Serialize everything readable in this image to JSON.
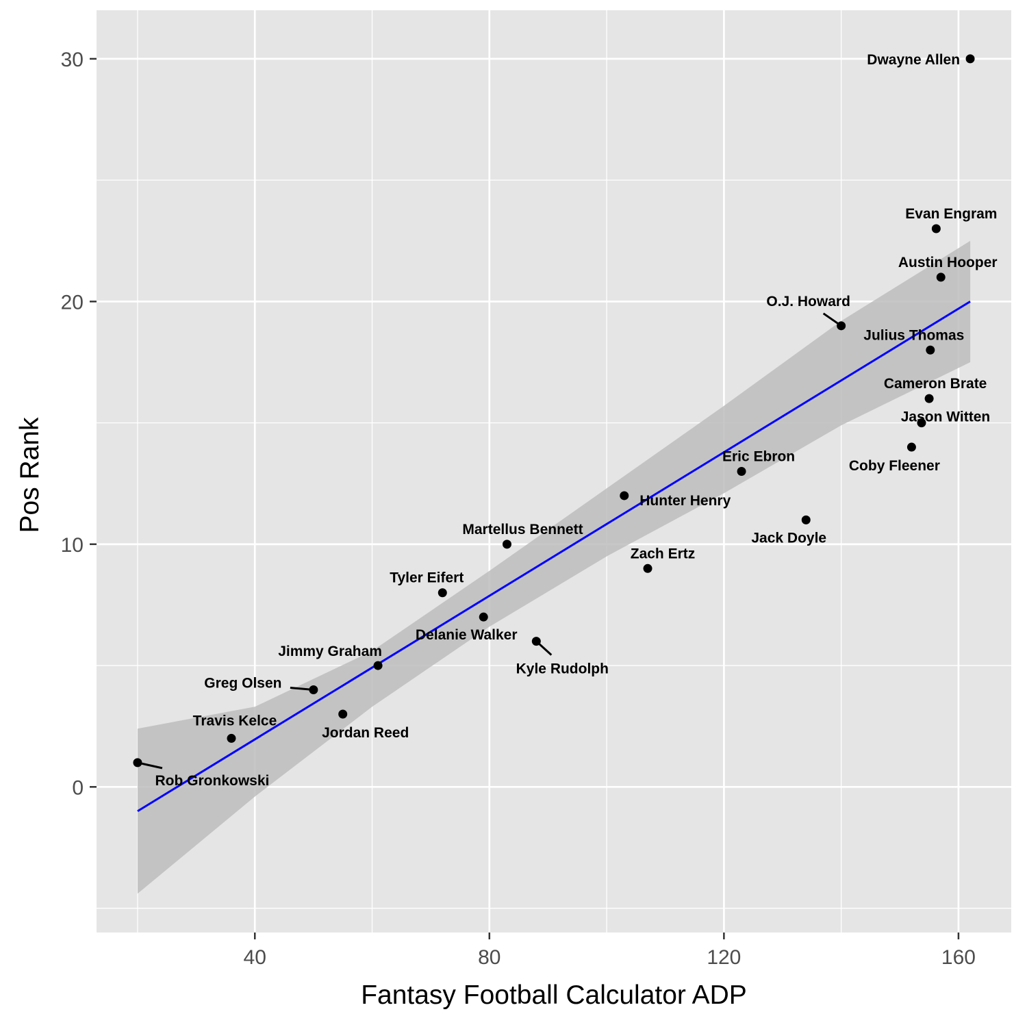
{
  "chart_data": {
    "type": "scatter",
    "xlabel": "Fantasy Football Calculator ADP",
    "ylabel": "Pos Rank",
    "xlim": [
      13,
      169
    ],
    "ylim": [
      -6,
      32
    ],
    "x_ticks": [
      40,
      80,
      120,
      160
    ],
    "y_ticks": [
      0,
      10,
      20,
      30
    ],
    "x_tick_labels": [
      "40",
      "80",
      "120",
      "160"
    ],
    "y_tick_labels": [
      "0",
      "10",
      "20",
      "30"
    ],
    "grid": true,
    "legend": "none",
    "colors": {
      "panel": "#e5e5e5",
      "grid": "#ffffff",
      "point": "#000000",
      "trend": "#0000ff",
      "band": "#bdbdbd"
    },
    "trend": {
      "method": "linear",
      "start": {
        "x": 20,
        "y": -1.0
      },
      "end": {
        "x": 162,
        "y": 20.0
      },
      "band": [
        {
          "x": 20,
          "lower": -4.4,
          "upper": 2.4
        },
        {
          "x": 40,
          "lower": -0.4,
          "upper": 3.3
        },
        {
          "x": 60,
          "lower": 3.3,
          "upper": 5.6
        },
        {
          "x": 80,
          "lower": 6.6,
          "upper": 8.9
        },
        {
          "x": 100,
          "lower": 9.5,
          "upper": 12.3
        },
        {
          "x": 120,
          "lower": 12.1,
          "upper": 15.7
        },
        {
          "x": 140,
          "lower": 14.9,
          "upper": 19.2
        },
        {
          "x": 162,
          "lower": 17.5,
          "upper": 22.5
        }
      ]
    },
    "points": [
      {
        "name": "Rob Gronkowski",
        "x": 20,
        "y": 1
      },
      {
        "name": "Travis Kelce",
        "x": 36,
        "y": 2
      },
      {
        "name": "Jordan Reed",
        "x": 55,
        "y": 3
      },
      {
        "name": "Greg Olsen",
        "x": 50,
        "y": 4
      },
      {
        "name": "Jimmy Graham",
        "x": 61,
        "y": 5
      },
      {
        "name": "Kyle Rudolph",
        "x": 88,
        "y": 6
      },
      {
        "name": "Delanie Walker",
        "x": 79,
        "y": 7
      },
      {
        "name": "Tyler Eifert",
        "x": 72,
        "y": 8
      },
      {
        "name": "Zach Ertz",
        "x": 107,
        "y": 9
      },
      {
        "name": "Martellus Bennett",
        "x": 83,
        "y": 10
      },
      {
        "name": "Jack Doyle",
        "x": 134,
        "y": 11
      },
      {
        "name": "Hunter Henry",
        "x": 103,
        "y": 12
      },
      {
        "name": "Eric Ebron",
        "x": 123,
        "y": 13
      },
      {
        "name": "Coby Fleener",
        "x": 152,
        "y": 14
      },
      {
        "name": "Jason Witten",
        "x": 153.7,
        "y": 15
      },
      {
        "name": "Cameron Brate",
        "x": 155,
        "y": 16
      },
      {
        "name": "Julius Thomas",
        "x": 155.2,
        "y": 18
      },
      {
        "name": "O.J. Howard",
        "x": 140,
        "y": 19
      },
      {
        "name": "Austin Hooper",
        "x": 157,
        "y": 21
      },
      {
        "name": "Evan Engram",
        "x": 156.2,
        "y": 23
      },
      {
        "name": "Dwayne Allen",
        "x": 162,
        "y": 30
      }
    ]
  }
}
